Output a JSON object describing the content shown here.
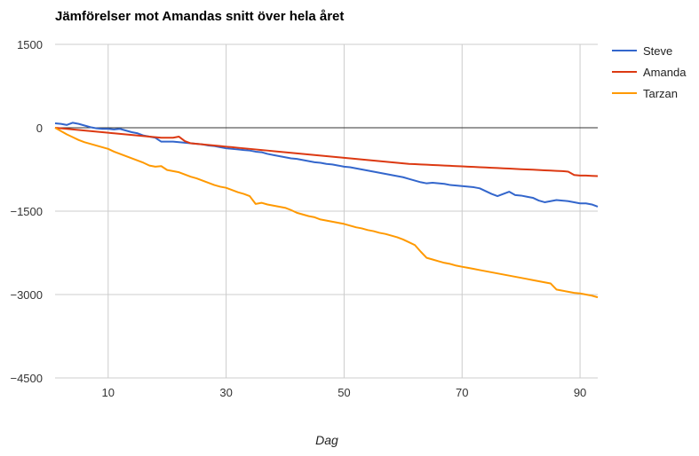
{
  "chart_data": {
    "type": "line",
    "title": "Jämförelser mot Amandas snitt över hela året",
    "xlabel": "Dag",
    "ylabel": "",
    "xlim": [
      1,
      93
    ],
    "ylim": [
      -4500,
      1500
    ],
    "xticks": [
      10,
      30,
      50,
      70,
      90
    ],
    "xtick_labels": [
      "10",
      "30",
      "50",
      "70",
      "90"
    ],
    "yticks": [
      1500,
      0,
      -1500,
      -3000,
      -4500
    ],
    "ytick_labels": [
      "1500",
      "0",
      "−1500",
      "−3000",
      "−4500"
    ],
    "grid": true,
    "legend_position": "right",
    "series": [
      {
        "name": "Steve",
        "color": "#3366cc",
        "x": [
          1,
          2,
          3,
          4,
          5,
          6,
          7,
          8,
          9,
          10,
          11,
          12,
          13,
          14,
          15,
          16,
          17,
          18,
          19,
          20,
          21,
          22,
          23,
          24,
          25,
          26,
          27,
          28,
          29,
          30,
          31,
          32,
          33,
          34,
          35,
          36,
          37,
          38,
          39,
          40,
          41,
          42,
          43,
          44,
          45,
          46,
          47,
          48,
          49,
          50,
          51,
          52,
          53,
          54,
          55,
          56,
          57,
          58,
          59,
          60,
          61,
          62,
          63,
          64,
          65,
          66,
          67,
          68,
          69,
          70,
          71,
          72,
          73,
          74,
          75,
          76,
          77,
          78,
          79,
          80,
          81,
          82,
          83,
          84,
          85,
          86,
          87,
          88,
          89,
          90,
          91,
          92,
          93
        ],
        "y": [
          80,
          70,
          50,
          90,
          70,
          40,
          10,
          -10,
          -20,
          -20,
          -30,
          -20,
          -50,
          -80,
          -100,
          -140,
          -160,
          -180,
          -250,
          -250,
          -250,
          -260,
          -270,
          -280,
          -290,
          -300,
          -320,
          -330,
          -350,
          -370,
          -380,
          -390,
          -400,
          -410,
          -430,
          -440,
          -470,
          -490,
          -510,
          -530,
          -550,
          -560,
          -580,
          -600,
          -620,
          -630,
          -650,
          -660,
          -680,
          -700,
          -710,
          -730,
          -750,
          -770,
          -790,
          -810,
          -830,
          -850,
          -870,
          -890,
          -920,
          -950,
          -980,
          -1000,
          -990,
          -1000,
          -1010,
          -1030,
          -1040,
          -1050,
          -1060,
          -1070,
          -1090,
          -1140,
          -1190,
          -1230,
          -1190,
          -1150,
          -1210,
          -1220,
          -1240,
          -1260,
          -1310,
          -1340,
          -1320,
          -1300,
          -1310,
          -1320,
          -1340,
          -1360,
          -1360,
          -1380,
          -1420
        ]
      },
      {
        "name": "Amanda",
        "color": "#dc3912",
        "x": [
          1,
          2,
          3,
          4,
          5,
          6,
          7,
          8,
          9,
          10,
          11,
          12,
          13,
          14,
          15,
          16,
          17,
          18,
          19,
          20,
          21,
          22,
          23,
          24,
          25,
          26,
          27,
          28,
          29,
          30,
          31,
          32,
          33,
          34,
          35,
          36,
          37,
          38,
          39,
          40,
          41,
          42,
          43,
          44,
          45,
          46,
          47,
          48,
          49,
          50,
          51,
          52,
          53,
          54,
          55,
          56,
          57,
          58,
          59,
          60,
          61,
          62,
          63,
          64,
          65,
          66,
          67,
          68,
          69,
          70,
          71,
          72,
          73,
          74,
          75,
          76,
          77,
          78,
          79,
          80,
          81,
          82,
          83,
          84,
          85,
          86,
          87,
          88,
          89,
          90,
          91,
          92,
          93
        ],
        "y": [
          0,
          -10,
          -20,
          -30,
          -40,
          -50,
          -60,
          -70,
          -80,
          -90,
          -100,
          -110,
          -120,
          -130,
          -140,
          -150,
          -160,
          -170,
          -180,
          -180,
          -180,
          -160,
          -240,
          -280,
          -290,
          -300,
          -310,
          -320,
          -330,
          -340,
          -350,
          -360,
          -370,
          -380,
          -390,
          -400,
          -410,
          -420,
          -430,
          -440,
          -450,
          -460,
          -470,
          -480,
          -490,
          -500,
          -510,
          -520,
          -530,
          -540,
          -550,
          -560,
          -570,
          -580,
          -590,
          -600,
          -610,
          -620,
          -630,
          -640,
          -650,
          -655,
          -660,
          -665,
          -670,
          -675,
          -680,
          -685,
          -690,
          -695,
          -700,
          -705,
          -710,
          -715,
          -720,
          -725,
          -730,
          -735,
          -740,
          -745,
          -750,
          -755,
          -760,
          -765,
          -770,
          -775,
          -780,
          -790,
          -850,
          -860,
          -860,
          -865,
          -870
        ]
      },
      {
        "name": "Tarzan",
        "color": "#ff9900",
        "x": [
          1,
          2,
          3,
          4,
          5,
          6,
          7,
          8,
          9,
          10,
          11,
          12,
          13,
          14,
          15,
          16,
          17,
          18,
          19,
          20,
          21,
          22,
          23,
          24,
          25,
          26,
          27,
          28,
          29,
          30,
          31,
          32,
          33,
          34,
          35,
          36,
          37,
          38,
          39,
          40,
          41,
          42,
          43,
          44,
          45,
          46,
          47,
          48,
          49,
          50,
          51,
          52,
          53,
          54,
          55,
          56,
          57,
          58,
          59,
          60,
          61,
          62,
          63,
          64,
          65,
          66,
          67,
          68,
          69,
          70,
          71,
          72,
          73,
          74,
          75,
          76,
          77,
          78,
          79,
          80,
          81,
          82,
          83,
          84,
          85,
          86,
          87,
          88,
          89,
          90,
          91,
          92,
          93
        ],
        "y": [
          0,
          -60,
          -120,
          -170,
          -220,
          -260,
          -290,
          -320,
          -350,
          -380,
          -430,
          -470,
          -510,
          -550,
          -590,
          -630,
          -680,
          -700,
          -690,
          -760,
          -780,
          -800,
          -840,
          -880,
          -910,
          -950,
          -990,
          -1030,
          -1060,
          -1080,
          -1120,
          -1160,
          -1190,
          -1230,
          -1370,
          -1350,
          -1380,
          -1400,
          -1420,
          -1440,
          -1480,
          -1530,
          -1560,
          -1590,
          -1610,
          -1650,
          -1670,
          -1690,
          -1710,
          -1730,
          -1760,
          -1790,
          -1810,
          -1840,
          -1860,
          -1890,
          -1910,
          -1940,
          -1970,
          -2010,
          -2060,
          -2110,
          -2230,
          -2340,
          -2370,
          -2400,
          -2430,
          -2450,
          -2480,
          -2500,
          -2520,
          -2540,
          -2560,
          -2580,
          -2600,
          -2620,
          -2640,
          -2660,
          -2680,
          -2700,
          -2720,
          -2740,
          -2760,
          -2780,
          -2800,
          -2910,
          -2930,
          -2950,
          -2970,
          -2980,
          -3000,
          -3020,
          -3050
        ]
      }
    ]
  }
}
